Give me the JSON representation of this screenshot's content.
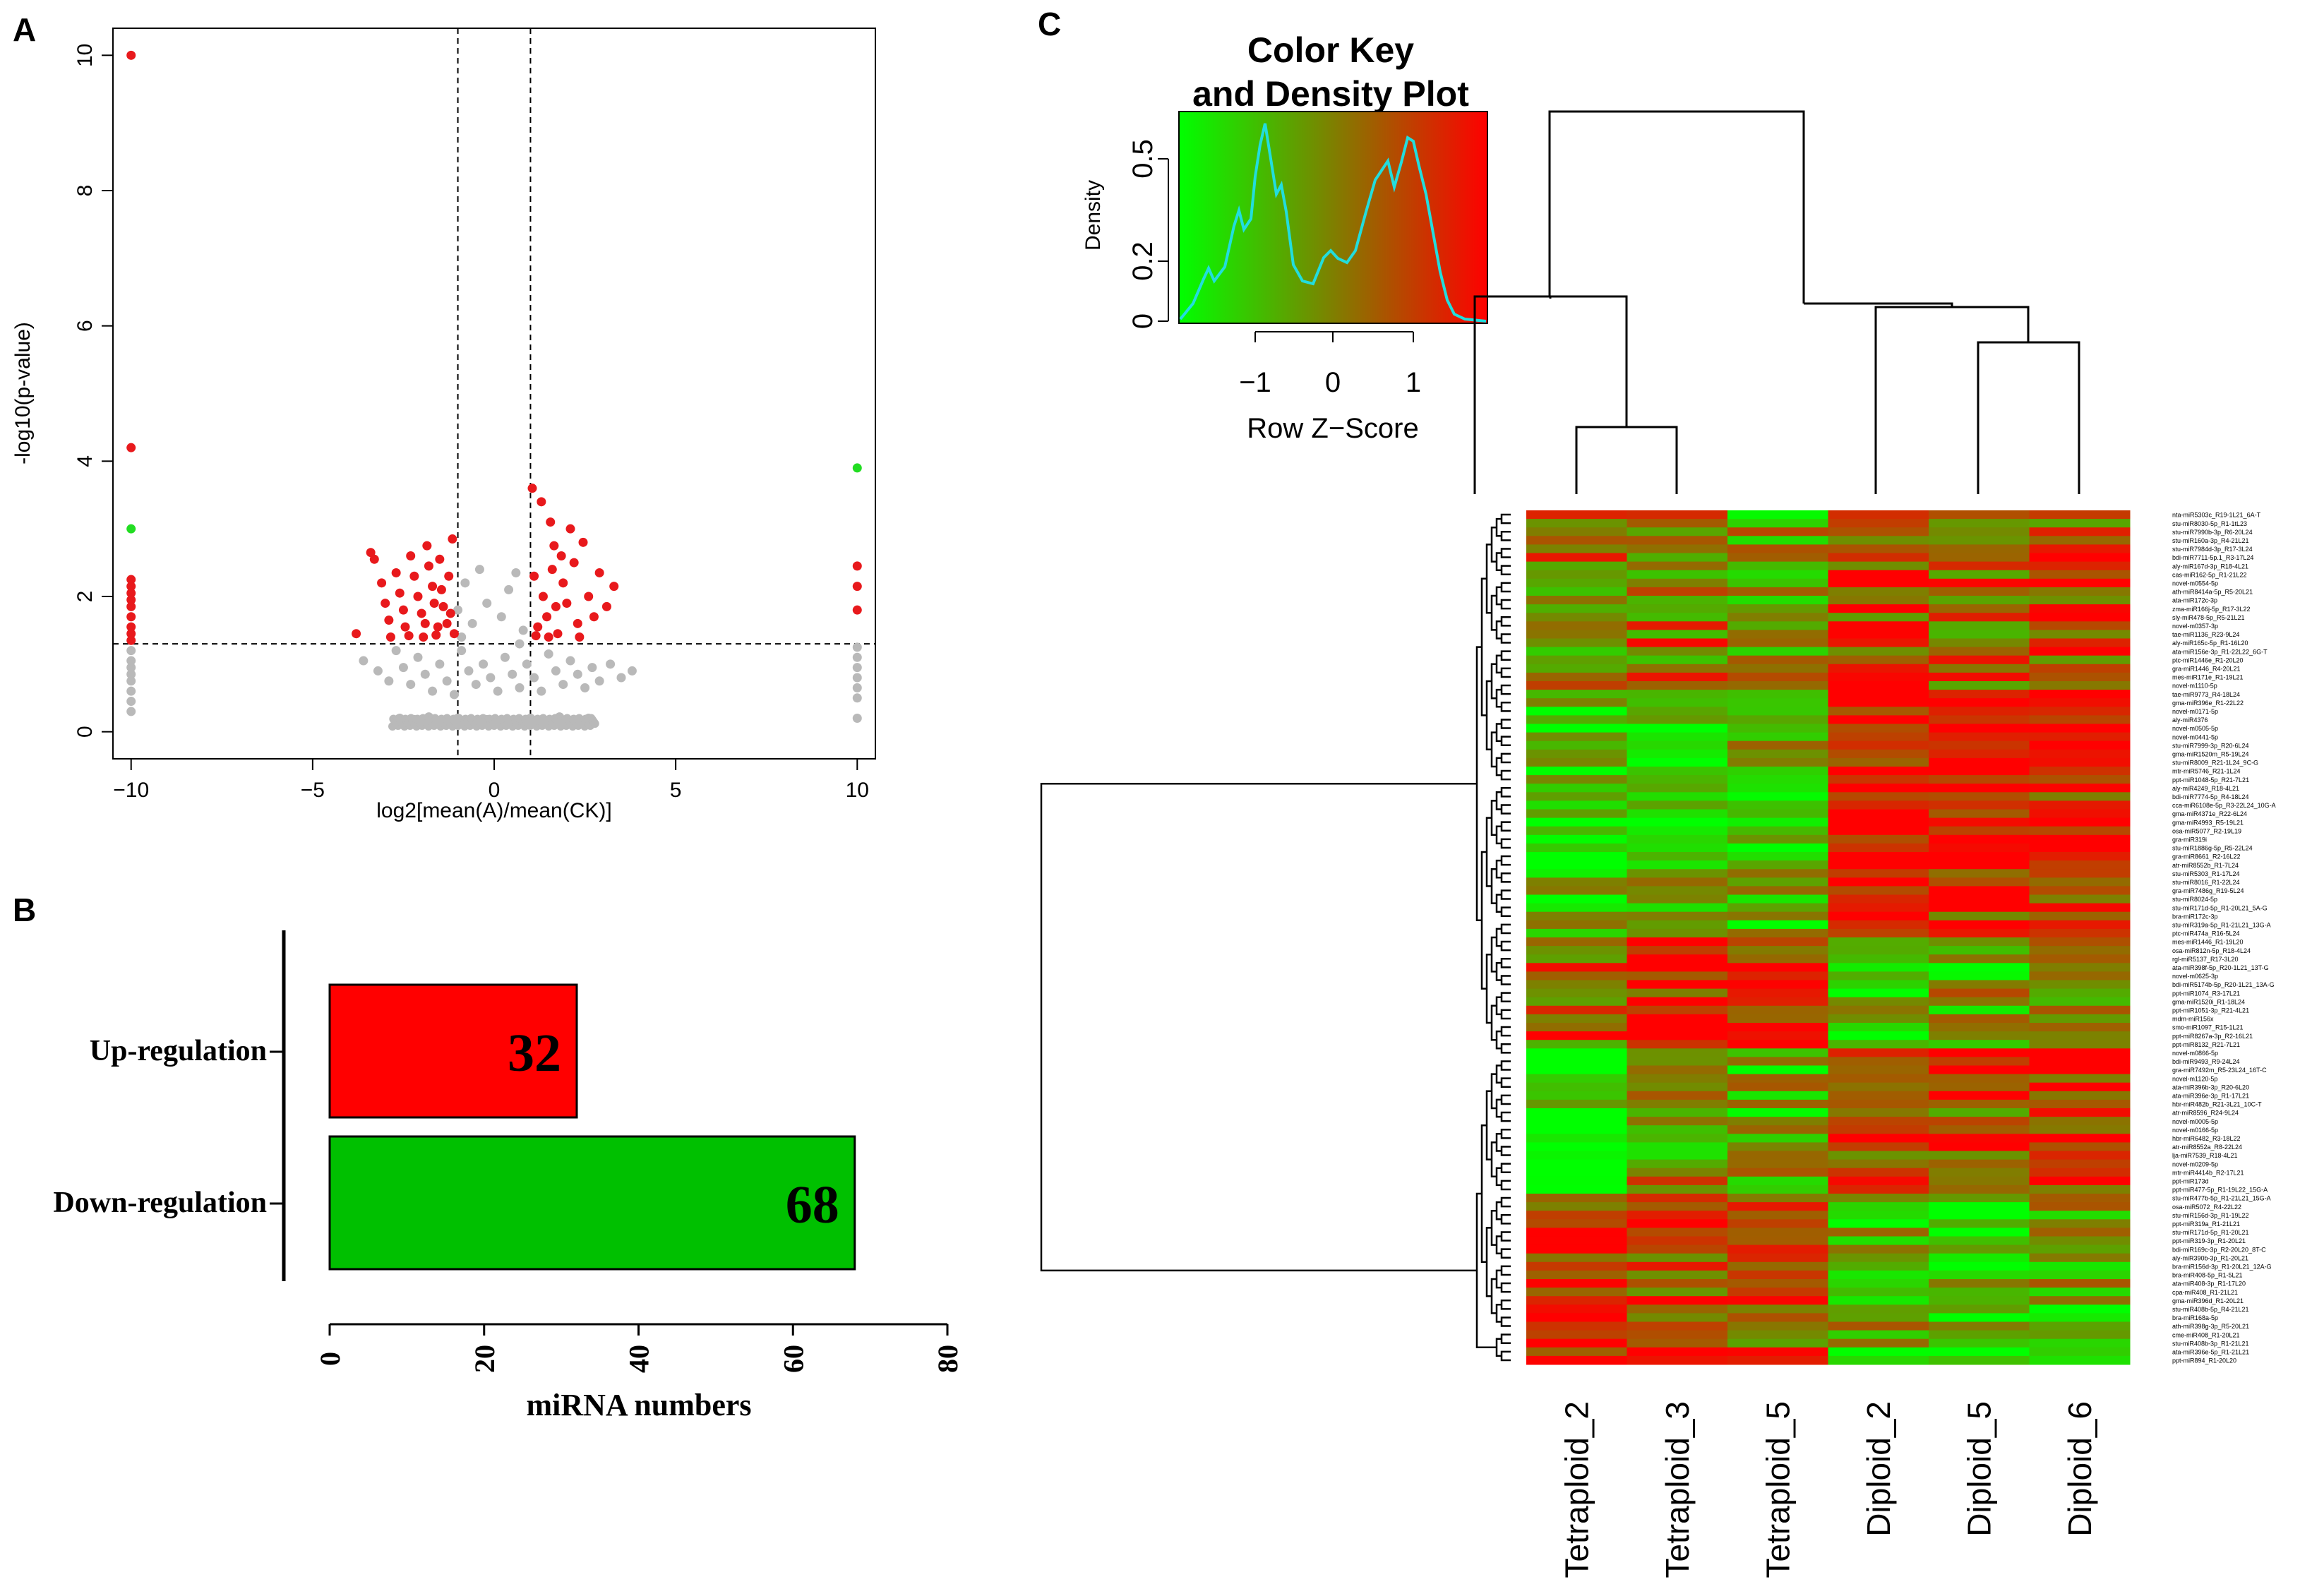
{
  "panel_labels": {
    "a": "A",
    "b": "B",
    "c": "C"
  },
  "chart_data": [
    {
      "panel": "A",
      "type": "scatter",
      "title": "",
      "xlabel": "log2[mean(A)/mean(CK)]",
      "ylabel": "-log10(p-value)",
      "xlim": [
        -10.5,
        10.5
      ],
      "ylim": [
        -0.4,
        10.4
      ],
      "xticks": [
        -10,
        -5,
        0,
        5,
        10
      ],
      "yticks": [
        0,
        2,
        4,
        6,
        8,
        10
      ],
      "threshold_lines": {
        "x": [
          -1,
          1
        ],
        "y": 1.3
      },
      "colors": {
        "significant": "#e8191c",
        "extreme": "#22dd22",
        "not_significant": "#b9b9b9"
      },
      "series": [
        {
          "name": "significant",
          "points": [
            [
              -10,
              10.0
            ],
            [
              -10,
              4.2
            ],
            [
              -10,
              2.25
            ],
            [
              -10,
              2.15
            ],
            [
              -10,
              2.05
            ],
            [
              -10,
              1.95
            ],
            [
              -10,
              1.85
            ],
            [
              -10,
              1.7
            ],
            [
              -10,
              1.55
            ],
            [
              -10,
              1.45
            ],
            [
              -10,
              1.35
            ],
            [
              -3.4,
              2.65
            ],
            [
              -3.3,
              2.55
            ],
            [
              -3.1,
              2.2
            ],
            [
              -3.0,
              1.9
            ],
            [
              -2.9,
              1.65
            ],
            [
              -2.7,
              2.35
            ],
            [
              -2.6,
              2.05
            ],
            [
              -2.5,
              1.8
            ],
            [
              -2.45,
              1.55
            ],
            [
              -2.3,
              2.6
            ],
            [
              -2.2,
              2.3
            ],
            [
              -2.1,
              2.0
            ],
            [
              -2.0,
              1.75
            ],
            [
              -1.9,
              1.6
            ],
            [
              -1.85,
              2.75
            ],
            [
              -1.8,
              2.45
            ],
            [
              -1.7,
              2.15
            ],
            [
              -1.65,
              1.9
            ],
            [
              -1.55,
              1.55
            ],
            [
              -1.5,
              2.55
            ],
            [
              -1.45,
              2.1
            ],
            [
              -1.4,
              1.85
            ],
            [
              -1.3,
              1.6
            ],
            [
              -1.25,
              2.3
            ],
            [
              -1.2,
              1.75
            ],
            [
              -1.15,
              2.85
            ],
            [
              -1.1,
              1.45
            ],
            [
              -3.8,
              1.45
            ],
            [
              -2.85,
              1.4
            ],
            [
              -2.35,
              1.42
            ],
            [
              -1.95,
              1.4
            ],
            [
              -1.6,
              1.43
            ],
            [
              1.05,
              3.6
            ],
            [
              1.1,
              2.3
            ],
            [
              1.2,
              1.55
            ],
            [
              1.3,
              3.4
            ],
            [
              1.35,
              2.0
            ],
            [
              1.45,
              1.7
            ],
            [
              1.55,
              3.1
            ],
            [
              1.6,
              2.4
            ],
            [
              1.7,
              1.85
            ],
            [
              1.75,
              1.45
            ],
            [
              1.85,
              2.6
            ],
            [
              1.9,
              2.2
            ],
            [
              2.0,
              1.9
            ],
            [
              2.1,
              3.0
            ],
            [
              2.2,
              2.5
            ],
            [
              2.3,
              1.6
            ],
            [
              2.45,
              2.8
            ],
            [
              2.6,
              2.0
            ],
            [
              2.75,
              1.7
            ],
            [
              2.9,
              2.35
            ],
            [
              3.1,
              1.85
            ],
            [
              3.3,
              2.15
            ],
            [
              1.15,
              1.42
            ],
            [
              1.5,
              1.4
            ],
            [
              2.35,
              1.4
            ],
            [
              1.65,
              2.75
            ],
            [
              10,
              2.45
            ],
            [
              10,
              2.15
            ],
            [
              10,
              1.8
            ]
          ]
        },
        {
          "name": "extreme",
          "points": [
            [
              -10,
              3.0
            ],
            [
              10,
              3.9
            ]
          ]
        },
        {
          "name": "not_significant",
          "points": [
            [
              -3.6,
              1.05
            ],
            [
              -3.2,
              0.9
            ],
            [
              -2.9,
              0.75
            ],
            [
              -2.7,
              1.2
            ],
            [
              -2.5,
              0.95
            ],
            [
              -2.3,
              0.7
            ],
            [
              -2.1,
              1.1
            ],
            [
              -1.9,
              0.85
            ],
            [
              -1.7,
              0.6
            ],
            [
              -1.5,
              1.0
            ],
            [
              -1.3,
              0.75
            ],
            [
              -1.1,
              0.55
            ],
            [
              -0.9,
              1.2
            ],
            [
              -0.7,
              0.9
            ],
            [
              -0.5,
              0.7
            ],
            [
              -0.3,
              1.0
            ],
            [
              -0.1,
              0.8
            ],
            [
              0.1,
              0.6
            ],
            [
              0.3,
              1.1
            ],
            [
              0.5,
              0.85
            ],
            [
              0.7,
              0.65
            ],
            [
              0.9,
              1.0
            ],
            [
              1.1,
              0.8
            ],
            [
              1.3,
              0.6
            ],
            [
              1.5,
              1.15
            ],
            [
              1.7,
              0.9
            ],
            [
              1.9,
              0.7
            ],
            [
              2.1,
              1.05
            ],
            [
              2.3,
              0.85
            ],
            [
              2.5,
              0.65
            ],
            [
              2.7,
              0.95
            ],
            [
              2.9,
              0.75
            ],
            [
              3.2,
              1.0
            ],
            [
              3.5,
              0.8
            ],
            [
              3.8,
              0.9
            ],
            [
              -1.0,
              1.8
            ],
            [
              -0.8,
              2.2
            ],
            [
              -0.6,
              1.6
            ],
            [
              -0.4,
              2.4
            ],
            [
              -0.2,
              1.9
            ],
            [
              0.2,
              1.7
            ],
            [
              0.4,
              2.1
            ],
            [
              0.6,
              2.35
            ],
            [
              0.8,
              1.5
            ],
            [
              -0.9,
              1.4
            ],
            [
              0.7,
              1.3
            ],
            [
              -2.6,
              0.2
            ],
            [
              -2.2,
              0.18
            ],
            [
              -1.8,
              0.22
            ],
            [
              -1.4,
              0.15
            ],
            [
              -1.0,
              0.2
            ],
            [
              -0.6,
              0.12
            ],
            [
              -0.2,
              0.18
            ],
            [
              0.2,
              0.1
            ],
            [
              0.6,
              0.16
            ],
            [
              1.0,
              0.2
            ],
            [
              1.4,
              0.14
            ],
            [
              1.8,
              0.22
            ],
            [
              2.2,
              0.18
            ],
            [
              2.6,
              0.2
            ],
            [
              -10,
              1.2
            ],
            [
              -10,
              1.05
            ],
            [
              -10,
              0.95
            ],
            [
              -10,
              0.85
            ],
            [
              -10,
              0.75
            ],
            [
              -10,
              0.6
            ],
            [
              -10,
              0.45
            ],
            [
              -10,
              0.3
            ],
            [
              10,
              1.25
            ],
            [
              10,
              1.1
            ],
            [
              10,
              0.95
            ],
            [
              10,
              0.8
            ],
            [
              10,
              0.65
            ],
            [
              10,
              0.5
            ],
            [
              10,
              0.2
            ]
          ]
        }
      ]
    },
    {
      "panel": "B",
      "type": "bar",
      "orientation": "horizontal",
      "categories": [
        "Up-regulation",
        "Down-regulation"
      ],
      "values": [
        32,
        68
      ],
      "data_labels": [
        "32",
        "68"
      ],
      "colors": [
        "#ff0000",
        "#00c000"
      ],
      "xlabel": "miRNA numbers",
      "xlim": [
        0,
        80
      ],
      "xticks": [
        "0",
        "20",
        "40",
        "60",
        "80"
      ]
    },
    {
      "panel": "C",
      "type": "heatmap",
      "color_key": {
        "title_line1": "Color Key",
        "title_line2": "and Density Plot",
        "xlabel": "Row Z−Score",
        "ylabel": "Density",
        "xticks": [
          "−1",
          "0",
          "1"
        ],
        "yticks": [
          "0",
          "0.2",
          "0.5"
        ],
        "colors": {
          "low": "#00ff00",
          "mid": "#7f7f00",
          "high": "#ff0000",
          "density_line": "#22dddd"
        }
      },
      "columns": [
        "Tetraploid_2",
        "Tetraploid_3",
        "Tetraploid_5",
        "Diploid_2",
        "Diploid_5",
        "Diploid_6"
      ],
      "rows": [
        "nta-miR5303c_R19-1L21_6A-T",
        "stu-miR8030-5p_R1-1tL23",
        "stu-miR7990b-3p_R6-20L24",
        "stu-miR160a-3p_R4-21L21",
        "stu-miR7984d-3p_R17-3L24",
        "bdi-miR7711-5p.1_R3-17L24",
        "aly-miR167d-3p_R18-4L21",
        "cas-miR162-5p_R1-21L22",
        "novel-m0554-5p",
        "ath-miR8414a-5p_R5-20L21",
        "ata-miR172c-3p",
        "zma-miR166j-5p_R17-3L22",
        "sly-miR478-5p_R5-21L21",
        "novel-m0357-3p",
        "tae-miR1136_R23-9L24",
        "aly-miR165c-5p_R1-16L20",
        "ata-miR156e-3p_R1-22L22_6G-T",
        "ptc-miR1446e_R1-20L20",
        "gra-miR1446_R4-20L21",
        "mes-miR171e_R1-19L21",
        "novel-m1110-5p",
        "tae-miR9773_R4-18L24",
        "gma-miR396e_R1-22L22",
        "novel-m0171-5p",
        "aly-miR4376",
        "novel-m0505-5p",
        "novel-m0441-5p",
        "stu-miR7999-3p_R20-6L24",
        "gma-miR1520m_R5-19L24",
        "stu-miR8009_R21-1L24_9C-G",
        "mtr-miR5746_R21-1L24",
        "ppt-miR1048-5p_R21-7L21",
        "aly-miR4249_R18-4L21",
        "bdi-miR7774-5p_R4-18L24",
        "cca-miR6108e-5p_R3-22L24_10G-A",
        "gma-miR4371e_R22-6L24",
        "gma-miR4993_R5-19L21",
        "osa-miR5077_R2-19L19",
        "gra-miR319i",
        "stu-miR1886g-5p_R5-22L24",
        "gra-miR8661_R2-16L22",
        "atr-miR8552b_R1-7L24",
        "stu-miR5303_R1-17L24",
        "stu-miR8016_R1-22L24",
        "gra-miR7486g_R19-5L24",
        "stu-miR8024-5p",
        "stu-miR171d-5p_R1-20L21_5A-G",
        "bra-miR172c-3p",
        "stu-miR319a-5p_R1-21L21_13G-A",
        "ptc-miR474a_R16-5L24",
        "mes-miR1446_R1-19L20",
        "osa-miR812n-5p_R18-4L24",
        "rgl-miR5137_R17-3L20",
        "ata-miR398f-5p_R20-1L21_13T-G",
        "novel-m0625-3p",
        "bdi-miR5174b-5p_R20-1L21_13A-G",
        "ppt-miR1074_R3-17L21",
        "gma-miR1520i_R1-18L24",
        "ppt-miR1051-3p_R21-4L21",
        "mdm-miR156x",
        "smo-miR1097_R15-1L21",
        "ppt-miR8267a-3p_R2-16L21",
        "ppt-miR8132_R21-7L21",
        "novel-m0866-5p",
        "bdi-miR9493_R9-24L24",
        "gra-miR7492m_R5-23L24_16T-C",
        "novel-m1120-5p",
        "ata-miR396b-3p_R20-6L20",
        "ata-miR396e-3p_R1-17L21",
        "hbr-miR482b_R21-3L21_10C-T",
        "atr-miR8596_R24-9L24",
        "novel-m0005-5p",
        "novel-m0166-5p",
        "hbr-miR6482_R3-18L22",
        "atr-miR8552a_R8-22L24",
        "lja-miR7539_R18-4L21",
        "novel-m0209-5p",
        "mtr-miR4414b_R2-17L21",
        "ppt-miR173d",
        "ppt-miR477-5p_R1-19L22_15G-A",
        "stu-miR477b-5p_R1-21L21_15G-A",
        "osa-miR5072_R4-22L22",
        "stu-miR156d-3p_R1-19L22",
        "ppt-miR319a_R1-21L21",
        "stu-miR171d-5p_R1-20L21",
        "ppt-miR319-3p_R1-20L21",
        "bdi-miR169c-3p_R2-20L20_8T-C",
        "aly-miR390b-3p_R1-20L21",
        "bra-miR156d-3p_R1-20L21_12A-G",
        "bra-miR408-5p_R1-5L21",
        "ata-miR408-3p_R1-17L20",
        "cpa-miR408_R1-21L21",
        "gma-miR396d_R1-20L21",
        "stu-miR408b-5p_R4-21L21",
        "bra-miR168a-5p",
        "ath-miR398g-3p_R5-20L21",
        "cme-miR408_R1-20L21",
        "stu-miR408b-3p_R1-21L21",
        "ata-miR396e-5p_R1-21L21",
        "ppt-miR894_R1-20L20"
      ],
      "values": []
    }
  ]
}
